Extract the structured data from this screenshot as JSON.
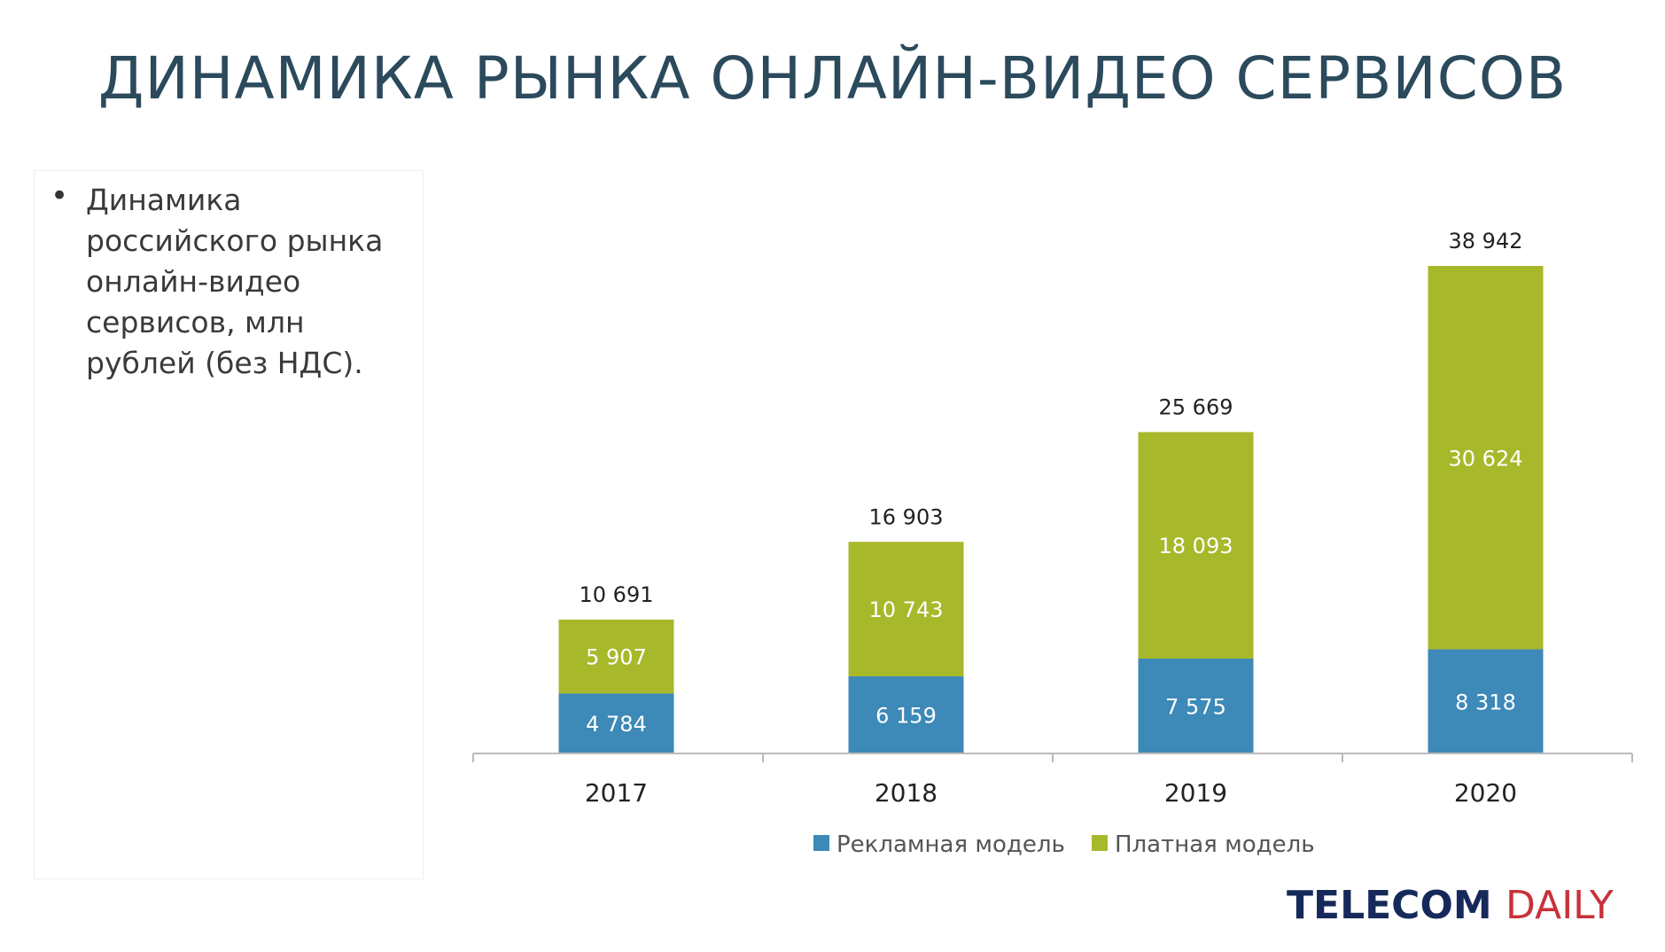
{
  "title": "ДИНАМИКА РЫНКА ОНЛАЙН-ВИДЕО СЕРВИСОВ",
  "note": {
    "bullet": "•",
    "text": "Динамика российского рынка онлайн-видео сервисов, млн рублей (без НДС)."
  },
  "logo": {
    "part1": "TELECOM",
    "part2": "DAILY"
  },
  "colors": {
    "ad": "#3d89b8",
    "paid": "#a8b82b",
    "axis": "#bbbbbb"
  },
  "chart_data": {
    "type": "bar",
    "stacked": true,
    "title": "",
    "xlabel": "",
    "ylabel": "млн рублей",
    "categories": [
      "2017",
      "2018",
      "2019",
      "2020"
    ],
    "series": [
      {
        "name": "Рекламная модель",
        "values": [
          4784,
          6159,
          7575,
          8318
        ],
        "labels": [
          "4 784",
          "6 159",
          "7 575",
          "8 318"
        ]
      },
      {
        "name": "Платная модель",
        "values": [
          5907,
          10743,
          18093,
          30624
        ],
        "labels": [
          "5 907",
          "10 743",
          "18 093",
          "30 624"
        ]
      }
    ],
    "totals": [
      10691,
      16903,
      25669,
      38942
    ],
    "total_labels": [
      "10 691",
      "16 903",
      "25 669",
      "38 942"
    ],
    "ylim": [
      0,
      38942
    ],
    "grid": false,
    "legend_position": "bottom"
  }
}
